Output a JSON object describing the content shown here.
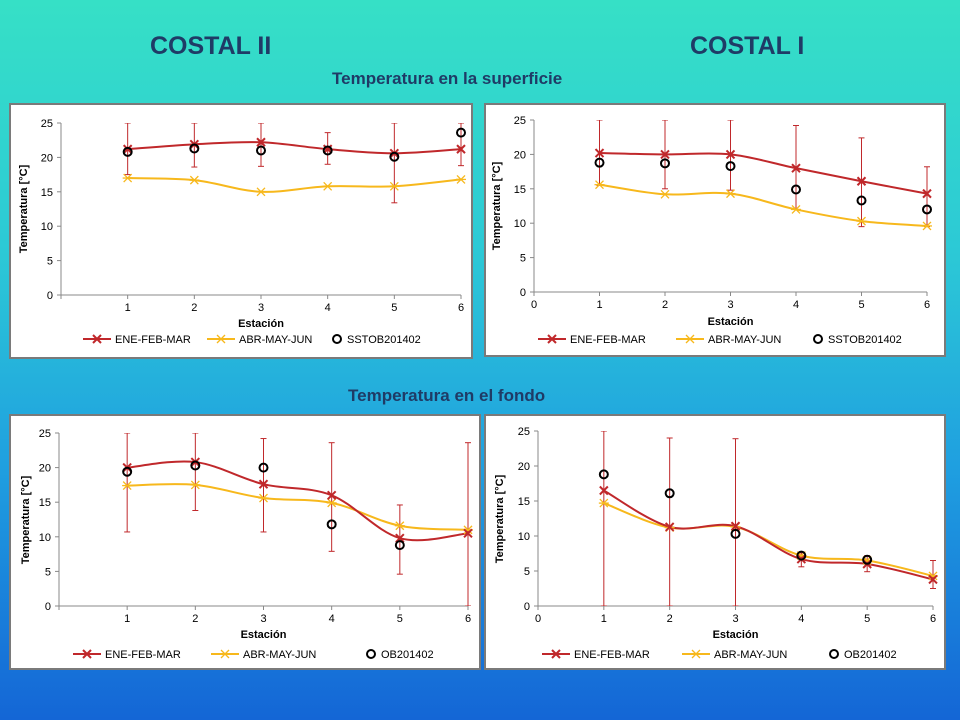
{
  "titles": {
    "left": "COSTAL II",
    "right": "COSTAL I",
    "surface": "Temperatura en la superficie",
    "bottom": "Temperatura en el fondo"
  },
  "colors": {
    "s1": "#c0282b",
    "s2": "#f7b81c",
    "obs": "#000000"
  },
  "chart_data": [
    {
      "type": "line",
      "title": "",
      "xlabel": "Estación",
      "ylabel": "Temperatura [°C]",
      "x": [
        1,
        2,
        3,
        4,
        5,
        6
      ],
      "xticks": [
        "1",
        "2",
        "3",
        "4",
        "5",
        "6"
      ],
      "xlim": [
        0,
        6
      ],
      "ylim": [
        0,
        25
      ],
      "yticks": [
        0,
        5,
        10,
        15,
        20,
        25
      ],
      "series": [
        {
          "name": "ENE-FEB-MAR",
          "values": [
            21.2,
            21.9,
            22.2,
            21.2,
            20.6,
            21.2
          ],
          "err_low": [
            17.5,
            18.6,
            18.7,
            19.0,
            13.4,
            18.8
          ],
          "err_high": [
            25,
            25,
            25,
            23.6,
            25,
            25
          ]
        },
        {
          "name": "ABR-MAY-JUN",
          "values": [
            17.0,
            16.7,
            15.0,
            15.8,
            15.8,
            16.8
          ]
        },
        {
          "name": "SSTOB201402",
          "values": [
            20.8,
            21.3,
            21.0,
            21.0,
            20.1,
            23.6
          ]
        }
      ],
      "legend": "bottom"
    },
    {
      "type": "line",
      "title": "",
      "xlabel": "Estación",
      "ylabel": "Temperatura [°C]",
      "x": [
        1,
        2,
        3,
        4,
        5,
        6
      ],
      "xticks": [
        "0",
        "1",
        "2",
        "3",
        "4",
        "5",
        "6"
      ],
      "xlim": [
        0,
        6
      ],
      "ylim": [
        0,
        25
      ],
      "yticks": [
        0,
        5,
        10,
        15,
        20,
        25
      ],
      "series": [
        {
          "name": "ENE-FEB-MAR",
          "values": [
            20.2,
            20.0,
            20.0,
            18.0,
            16.1,
            14.3
          ],
          "err_low": [
            15.5,
            15.0,
            14.8,
            12.0,
            9.5,
            9.5
          ],
          "err_high": [
            25,
            25,
            25,
            24.2,
            22.4,
            18.2
          ]
        },
        {
          "name": "ABR-MAY-JUN",
          "values": [
            15.6,
            14.2,
            14.3,
            12.0,
            10.3,
            9.6
          ]
        },
        {
          "name": "SSTOB201402",
          "values": [
            18.8,
            18.7,
            18.3,
            14.9,
            13.3,
            12.0
          ]
        }
      ],
      "legend": "bottom"
    },
    {
      "type": "line",
      "title": "",
      "xlabel": "Estación",
      "ylabel": "Temperatura [°C]",
      "x": [
        1,
        2,
        3,
        4,
        5,
        6
      ],
      "xticks": [
        "1",
        "2",
        "3",
        "4",
        "5",
        "6"
      ],
      "xlim": [
        0,
        6
      ],
      "ylim": [
        0,
        25
      ],
      "yticks": [
        0,
        5,
        10,
        15,
        20,
        25
      ],
      "series": [
        {
          "name": "ENE-FEB-MAR",
          "values": [
            20.0,
            20.8,
            17.6,
            16.0,
            9.8,
            10.5
          ],
          "err_low": [
            10.7,
            13.8,
            10.7,
            7.9,
            4.6,
            0
          ],
          "err_high": [
            25,
            25,
            24.2,
            23.6,
            14.6,
            23.6
          ]
        },
        {
          "name": "ABR-MAY-JUN",
          "values": [
            17.4,
            17.5,
            15.6,
            14.9,
            11.6,
            11.0
          ]
        },
        {
          "name": "OB201402",
          "values": [
            19.4,
            20.3,
            20.0,
            11.8,
            8.8,
            null
          ]
        }
      ],
      "legend": "bottom"
    },
    {
      "type": "line",
      "title": "",
      "xlabel": "Estación",
      "ylabel": "Temperatura [°C]",
      "x": [
        1,
        2,
        3,
        4,
        5,
        6
      ],
      "xticks": [
        "0",
        "1",
        "2",
        "3",
        "4",
        "5",
        "6"
      ],
      "xlim": [
        0,
        6
      ],
      "ylim": [
        0,
        25
      ],
      "yticks": [
        0,
        5,
        10,
        15,
        20,
        25
      ],
      "series": [
        {
          "name": "ENE-FEB-MAR",
          "values": [
            16.5,
            11.3,
            11.4,
            6.7,
            6.0,
            3.8
          ],
          "err_low": [
            0,
            0,
            0,
            5.6,
            4.9,
            2.5
          ],
          "err_high": [
            25,
            24.0,
            23.9,
            7.6,
            7.2,
            6.5
          ]
        },
        {
          "name": "ABR-MAY-JUN",
          "values": [
            14.7,
            11.2,
            11.3,
            7.2,
            6.5,
            4.3
          ]
        },
        {
          "name": "OB201402",
          "values": [
            18.8,
            16.1,
            10.3,
            7.2,
            6.6,
            null
          ]
        }
      ],
      "legend": "bottom"
    }
  ]
}
